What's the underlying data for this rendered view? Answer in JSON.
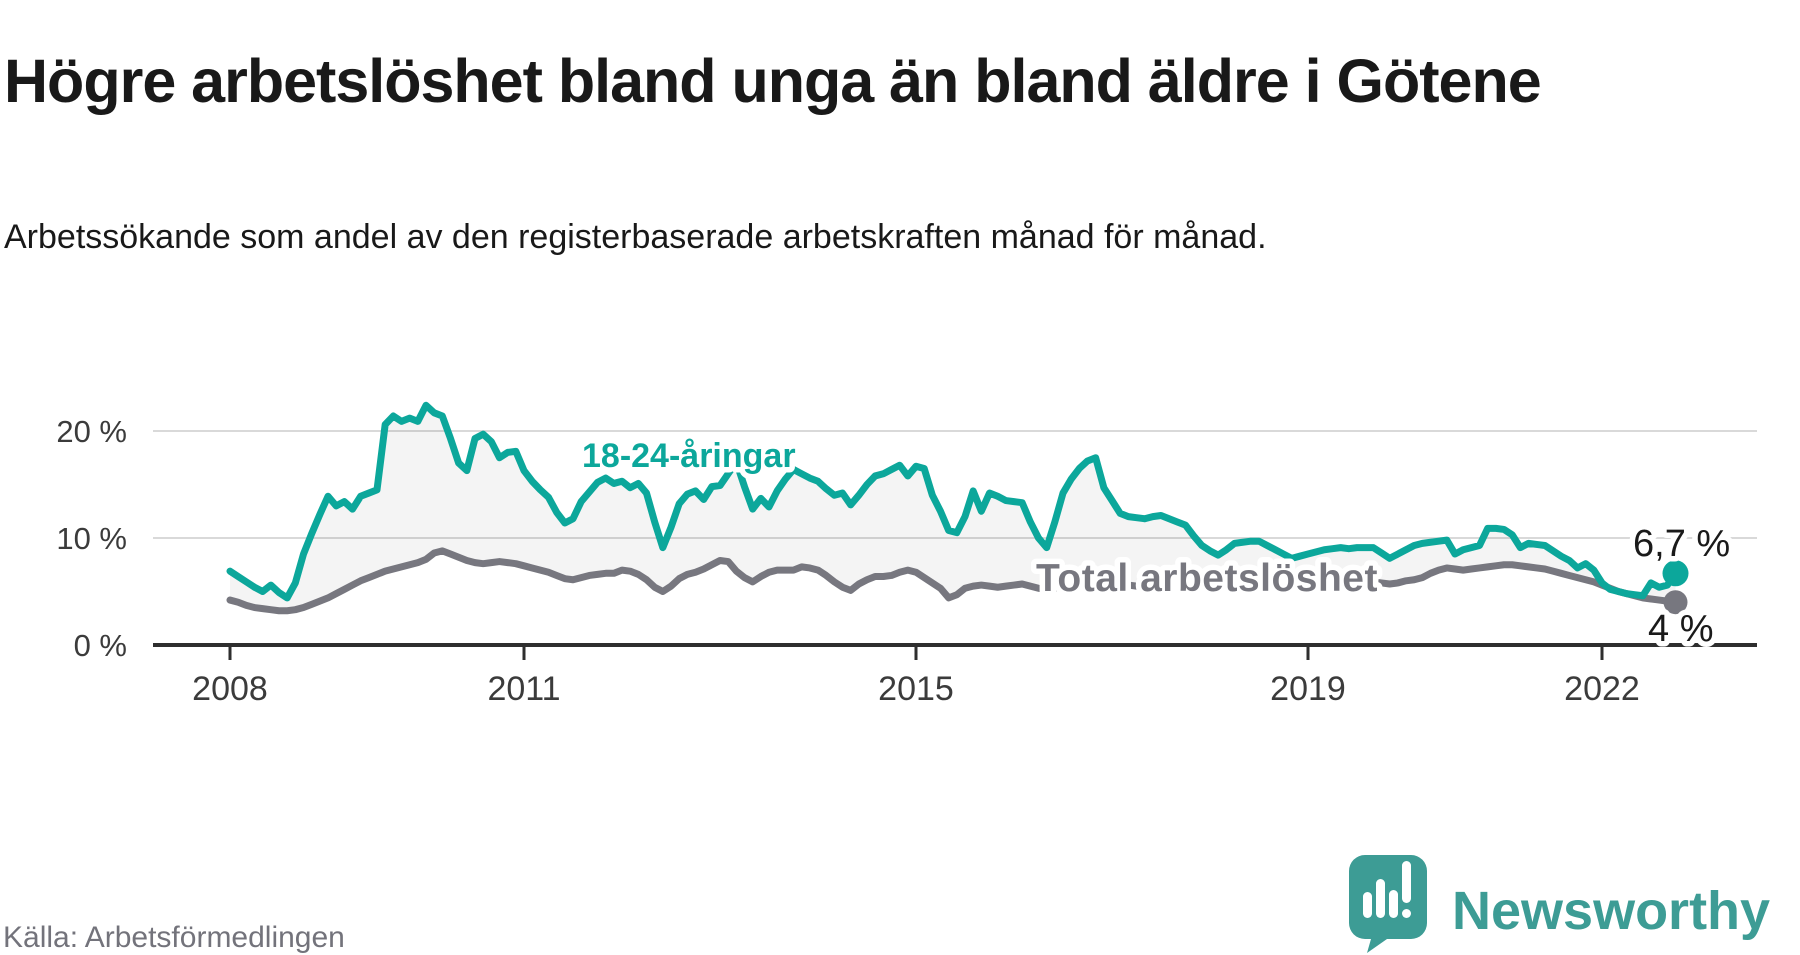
{
  "header": {
    "title": "Högre arbetslöshet bland unga än bland äldre i Götene",
    "subtitle": "Arbetssökande som andel av den registerbaserade arbetskraften månad för månad."
  },
  "footer": {
    "source": "Källa: Arbetsförmedlingen",
    "brand": "Newsworthy",
    "brand_color": "#3d9c95",
    "logo_icon": "newsworthy-bars-icon"
  },
  "chart_data": {
    "type": "line",
    "frequency": "monthly",
    "x_start": "2008-01",
    "x_end": "2022-10",
    "unit": "%",
    "ylim": [
      0,
      27.5
    ],
    "grid": "horizontal",
    "y_ticks": [
      0,
      10,
      20
    ],
    "y_tick_labels": [
      "0 %",
      "10 %",
      "20 %"
    ],
    "x_ticks": [
      2008,
      2011,
      2015,
      2019,
      2022
    ],
    "x_tick_labels": [
      "2008",
      "2011",
      "2015",
      "2019",
      "2022"
    ],
    "colors": {
      "young": "#0ca79b",
      "total": "#77777f",
      "band_fill": "rgba(0,0,0,0.045)",
      "grid": "#d9d9d9",
      "axis": "#2e2e2e"
    },
    "series": [
      {
        "name": "18-24-åringar",
        "color": "#0ca79b",
        "end_label": "6,7 %",
        "end_value": 6.7,
        "values": [
          6.9,
          6.4,
          5.9,
          5.4,
          5.0,
          5.6,
          4.9,
          4.4,
          5.8,
          8.5,
          10.4,
          12.2,
          13.9,
          13.0,
          13.4,
          12.7,
          13.9,
          14.2,
          14.5,
          20.6,
          21.4,
          20.9,
          21.2,
          20.9,
          22.4,
          21.7,
          21.4,
          19.3,
          17.0,
          16.3,
          19.3,
          19.7,
          19.0,
          17.5,
          18.0,
          18.1,
          16.3,
          15.3,
          14.5,
          13.8,
          12.4,
          11.4,
          11.8,
          13.4,
          14.3,
          15.2,
          15.6,
          15.1,
          15.3,
          14.7,
          15.1,
          14.2,
          11.5,
          9.1,
          11.0,
          13.2,
          14.1,
          14.4,
          13.6,
          14.8,
          14.9,
          16.0,
          17.1,
          14.8,
          12.7,
          13.7,
          12.9,
          14.4,
          15.5,
          16.4,
          16.0,
          15.6,
          15.3,
          14.6,
          14.0,
          14.2,
          13.1,
          14.0,
          15.0,
          15.8,
          16.0,
          16.4,
          16.8,
          15.8,
          16.7,
          16.5,
          14.0,
          12.5,
          10.7,
          10.5,
          12.0,
          14.4,
          12.5,
          14.2,
          13.9,
          13.5,
          13.4,
          13.3,
          11.5,
          10.0,
          9.1,
          11.5,
          14.2,
          15.5,
          16.5,
          17.2,
          17.5,
          14.7,
          13.5,
          12.3,
          12.0,
          11.9,
          11.8,
          12.0,
          12.1,
          11.8,
          11.5,
          11.2,
          10.2,
          9.3,
          8.8,
          8.4,
          8.9,
          9.5,
          9.6,
          9.7,
          9.7,
          9.3,
          8.9,
          8.5,
          8.1,
          8.3,
          8.5,
          8.7,
          8.9,
          9.0,
          9.1,
          9.0,
          9.1,
          9.1,
          9.1,
          8.6,
          8.1,
          8.5,
          8.9,
          9.3,
          9.5,
          9.6,
          9.7,
          9.8,
          8.5,
          8.9,
          9.1,
          9.3,
          10.9,
          10.9,
          10.8,
          10.3,
          9.1,
          9.5,
          9.4,
          9.3,
          8.8,
          8.3,
          7.9,
          7.2,
          7.6,
          7.0,
          5.8,
          5.2,
          5.0,
          4.8,
          4.7,
          4.6,
          5.8,
          5.4,
          5.6,
          6.7
        ]
      },
      {
        "name": "Total arbetslöshet",
        "color": "#77777f",
        "end_label": "4 %",
        "end_value": 4.0,
        "values": [
          4.2,
          4.0,
          3.7,
          3.5,
          3.4,
          3.3,
          3.2,
          3.2,
          3.3,
          3.5,
          3.8,
          4.1,
          4.4,
          4.8,
          5.2,
          5.6,
          6.0,
          6.3,
          6.6,
          6.9,
          7.1,
          7.3,
          7.5,
          7.7,
          8.0,
          8.6,
          8.8,
          8.5,
          8.2,
          7.9,
          7.7,
          7.6,
          7.7,
          7.8,
          7.7,
          7.6,
          7.4,
          7.2,
          7.0,
          6.8,
          6.5,
          6.2,
          6.1,
          6.3,
          6.5,
          6.6,
          6.7,
          6.7,
          7.0,
          6.9,
          6.6,
          6.1,
          5.4,
          5.0,
          5.5,
          6.2,
          6.6,
          6.8,
          7.1,
          7.5,
          7.9,
          7.8,
          6.9,
          6.3,
          5.9,
          6.4,
          6.8,
          7.0,
          7.0,
          7.0,
          7.3,
          7.2,
          7.0,
          6.5,
          5.9,
          5.4,
          5.1,
          5.7,
          6.1,
          6.4,
          6.4,
          6.5,
          6.8,
          7.0,
          6.8,
          6.3,
          5.8,
          5.3,
          4.4,
          4.7,
          5.3,
          5.5,
          5.6,
          5.5,
          5.4,
          5.5,
          5.6,
          5.7,
          5.5,
          5.3,
          5.2,
          5.3,
          5.6,
          5.8,
          5.9,
          5.9,
          5.8,
          5.7,
          5.8,
          5.7,
          5.6,
          5.5,
          5.4,
          5.5,
          5.7,
          5.8,
          5.8,
          5.7,
          5.6,
          5.5,
          5.5,
          5.4,
          5.3,
          5.3,
          5.4,
          5.5,
          5.6,
          5.5,
          5.4,
          5.3,
          5.2,
          5.3,
          5.4,
          5.3,
          5.1,
          5.3,
          5.5,
          5.6,
          5.8,
          5.8,
          5.9,
          5.8,
          5.7,
          5.8,
          6.0,
          6.1,
          6.3,
          6.7,
          7.0,
          7.2,
          7.1,
          7.0,
          7.1,
          7.2,
          7.3,
          7.4,
          7.5,
          7.5,
          7.4,
          7.3,
          7.2,
          7.1,
          6.9,
          6.7,
          6.5,
          6.3,
          6.1,
          5.9,
          5.6,
          5.3,
          5.0,
          4.8,
          4.6,
          4.4,
          4.3,
          4.2,
          4.1,
          4.0
        ]
      }
    ]
  }
}
